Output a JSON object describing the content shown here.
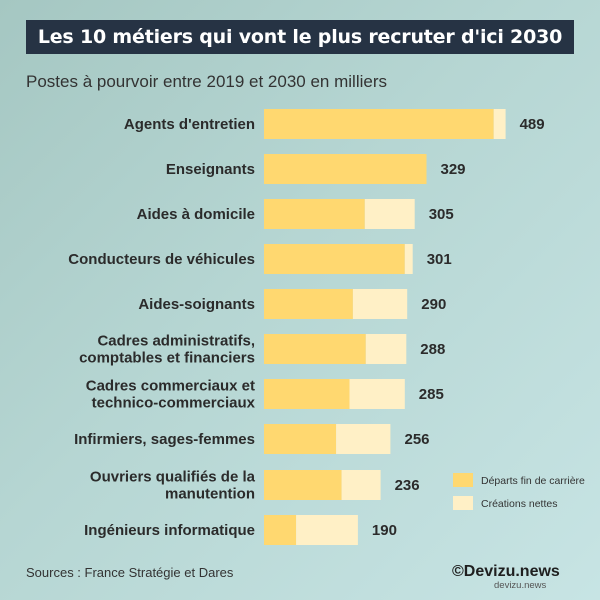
{
  "title": "Les 10 métiers qui vont le plus recruter d'ici 2030",
  "subtitle": "Postes à pourvoir entre 2019 et 2030 en milliers",
  "source": "Sources : France Stratégie et Dares",
  "brand": "©Devizu.news",
  "brand_watermark": "devizu.news",
  "colors": {
    "departs": "#ffd870",
    "creations": "#fff0c6",
    "title_bg": "#263344"
  },
  "chart_data": {
    "type": "bar",
    "orientation": "horizontal",
    "stacked": true,
    "categories": [
      [
        "Agents d'entretien"
      ],
      [
        "Enseignants"
      ],
      [
        "Aides à domicile"
      ],
      [
        "Conducteurs de véhicules"
      ],
      [
        "Aides-soignants"
      ],
      [
        "Cadres administratifs,",
        "comptables et financiers"
      ],
      [
        "Cadres commerciaux et",
        "technico-commerciaux"
      ],
      [
        "Infirmiers, sages-femmes"
      ],
      [
        "Ouvriers qualifiés de la",
        "manutention"
      ],
      [
        "Ingénieurs informatique"
      ]
    ],
    "series": [
      {
        "name": "Départs fin de carrière",
        "values": [
          465,
          329,
          204,
          285,
          180,
          206,
          173,
          146,
          157,
          65
        ]
      },
      {
        "name": "Créations nettes",
        "values": [
          24,
          0,
          101,
          16,
          110,
          82,
          112,
          110,
          79,
          125
        ]
      }
    ],
    "totals": [
      "489",
      "329",
      "305",
      "301",
      "290",
      "288",
      "285",
      "256",
      "236",
      "190"
    ],
    "legend_position": "right"
  }
}
